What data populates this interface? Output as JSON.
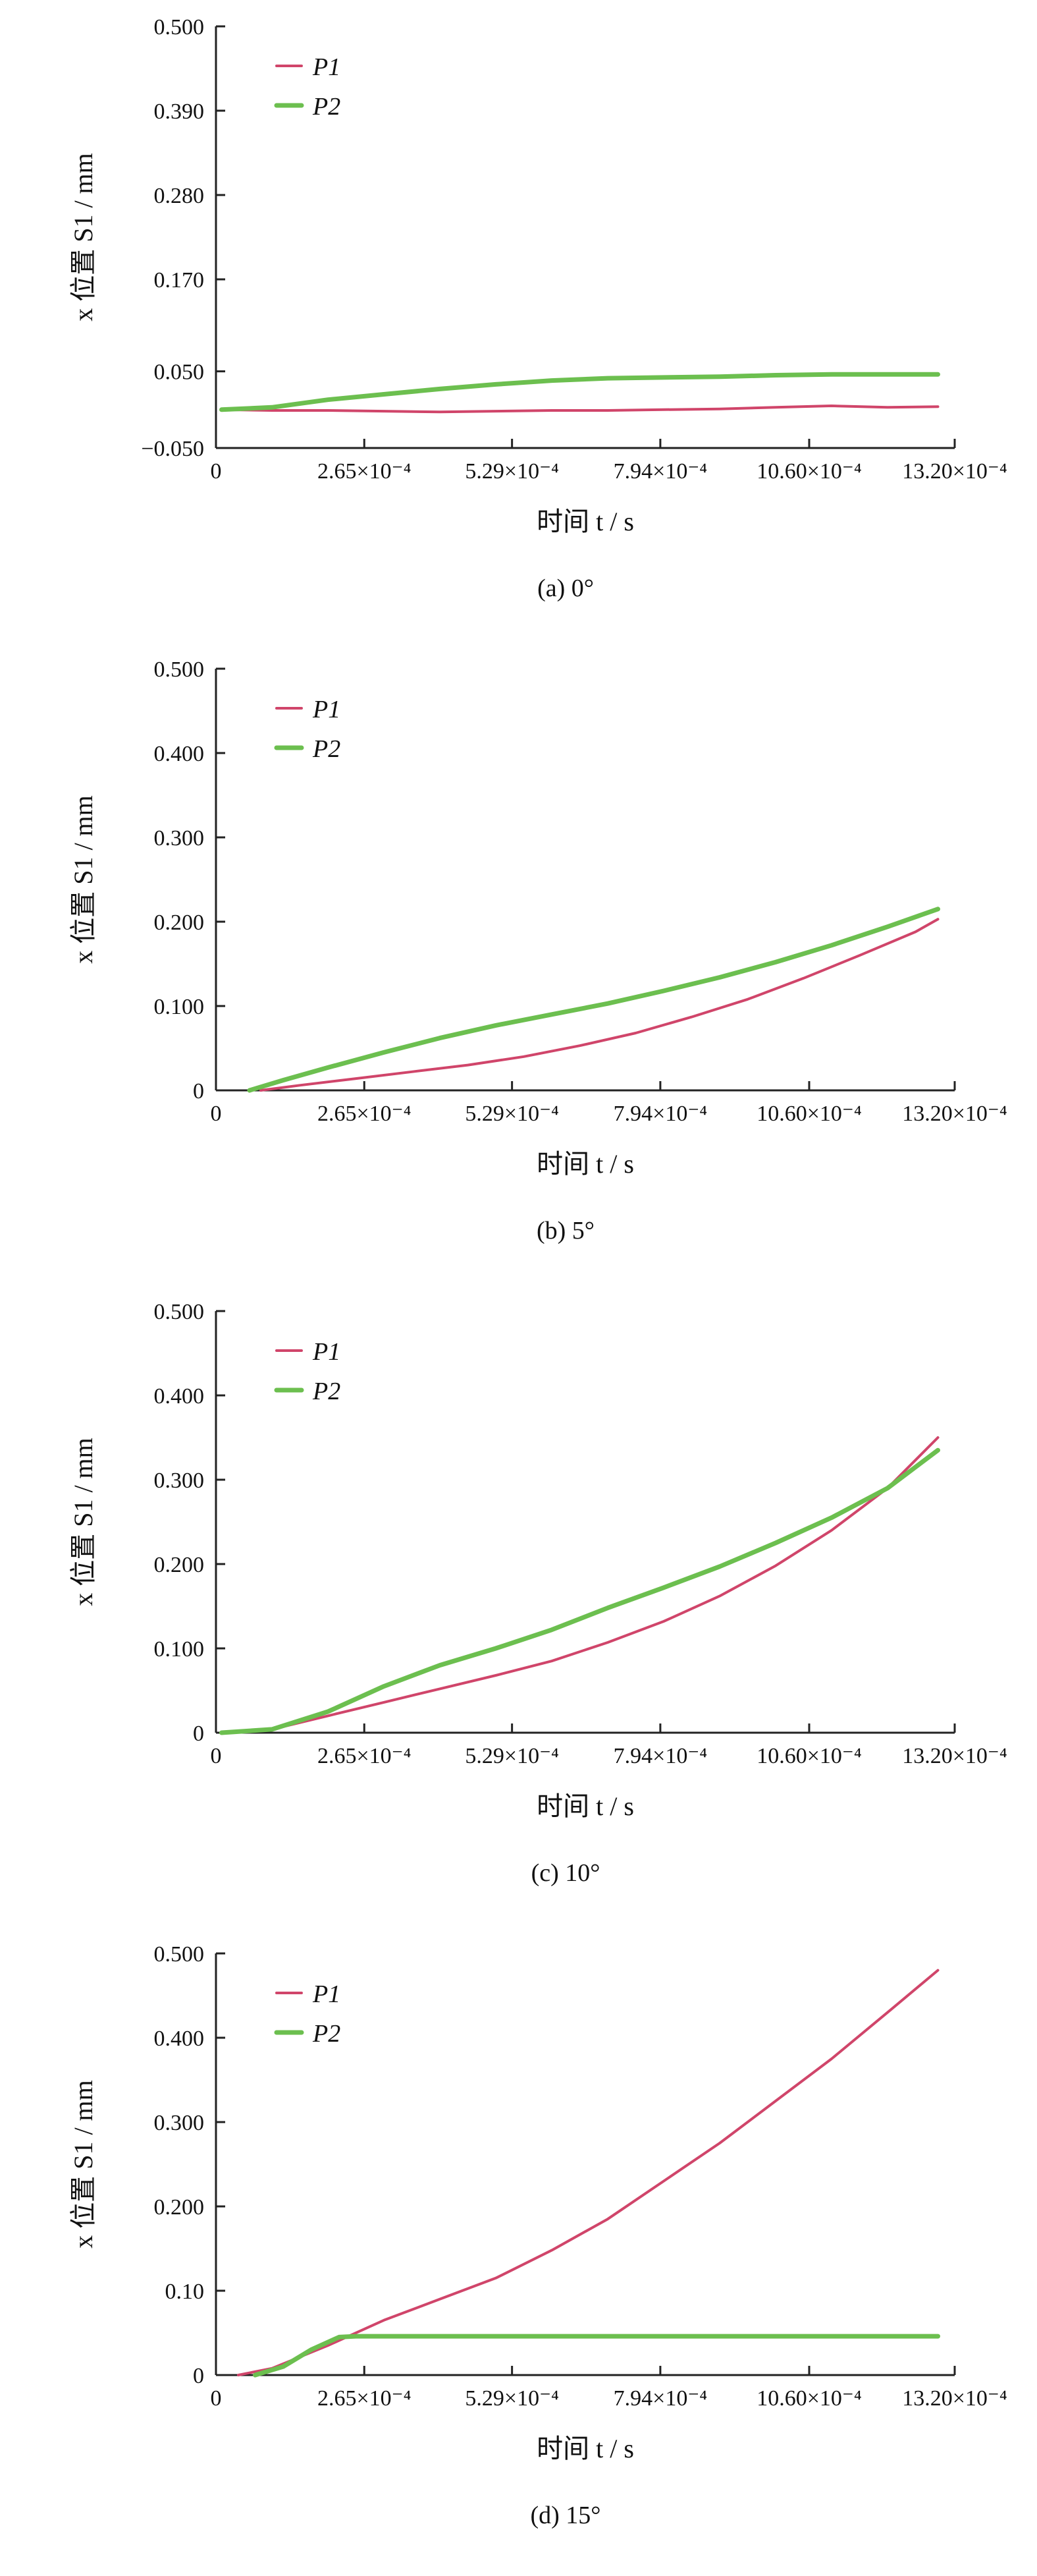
{
  "chart_data": [
    {
      "type": "line",
      "caption": "(a) 0°",
      "xlabel": "时间 t / s",
      "ylabel": "x 位置 S1 / mm",
      "xlim": [
        0,
        13.2
      ],
      "ylim": [
        -0.05,
        0.5
      ],
      "x_ticks": [
        0,
        2.65,
        5.29,
        7.94,
        10.6,
        13.2
      ],
      "x_tick_labels": [
        "0",
        "2.65×10⁻⁴",
        "5.29×10⁻⁴",
        "7.94×10⁻⁴",
        "10.60×10⁻⁴",
        "13.20×10⁻⁴"
      ],
      "y_ticks": [
        -0.05,
        0.05,
        0.17,
        0.28,
        0.39,
        0.5
      ],
      "y_tick_labels": [
        "−0.050",
        "0.050",
        "0.170",
        "0.280",
        "0.390",
        "0.500"
      ],
      "legend": "top-left",
      "series": [
        {
          "name": "P1",
          "color": "#d0456a",
          "x": [
            0.1,
            1.0,
            2.0,
            3.0,
            4.0,
            5.0,
            6.0,
            7.0,
            8.0,
            9.0,
            10.0,
            11.0,
            12.0,
            12.9
          ],
          "y": [
            0.0,
            -0.001,
            -0.001,
            -0.002,
            -0.003,
            -0.002,
            -0.001,
            -0.001,
            0.0,
            0.001,
            0.003,
            0.005,
            0.003,
            0.004
          ]
        },
        {
          "name": "P2",
          "color": "#6cbf4f",
          "x": [
            0.1,
            1.0,
            2.0,
            3.0,
            4.0,
            5.0,
            6.0,
            7.0,
            8.0,
            9.0,
            10.0,
            11.0,
            12.0,
            12.9
          ],
          "y": [
            0.0,
            0.003,
            0.013,
            0.02,
            0.027,
            0.033,
            0.038,
            0.041,
            0.042,
            0.043,
            0.045,
            0.046,
            0.046,
            0.046
          ]
        }
      ]
    },
    {
      "type": "line",
      "caption": "(b) 5°",
      "xlabel": "时间 t / s",
      "ylabel": "x 位置 S1 / mm",
      "xlim": [
        0,
        13.2
      ],
      "ylim": [
        0,
        0.5
      ],
      "x_ticks": [
        0,
        2.65,
        5.29,
        7.94,
        10.6,
        13.2
      ],
      "x_tick_labels": [
        "0",
        "2.65×10⁻⁴",
        "5.29×10⁻⁴",
        "7.94×10⁻⁴",
        "10.60×10⁻⁴",
        "13.20×10⁻⁴"
      ],
      "y_ticks": [
        0,
        0.1,
        0.2,
        0.3,
        0.4,
        0.5
      ],
      "y_tick_labels": [
        "0",
        "0.100",
        "0.200",
        "0.300",
        "0.400",
        "0.500"
      ],
      "legend": "top-left",
      "series": [
        {
          "name": "P1",
          "color": "#d0456a",
          "x": [
            0.8,
            1.5,
            2.5,
            3.5,
            4.5,
            5.5,
            6.5,
            7.5,
            8.5,
            9.5,
            10.5,
            11.5,
            12.5,
            12.9
          ],
          "y": [
            0.0,
            0.006,
            0.014,
            0.022,
            0.03,
            0.04,
            0.053,
            0.068,
            0.087,
            0.108,
            0.133,
            0.16,
            0.188,
            0.203
          ]
        },
        {
          "name": "P2",
          "color": "#6cbf4f",
          "x": [
            0.6,
            1.2,
            2.0,
            3.0,
            4.0,
            5.0,
            6.0,
            7.0,
            8.0,
            9.0,
            10.0,
            11.0,
            12.0,
            12.9
          ],
          "y": [
            0.0,
            0.012,
            0.027,
            0.045,
            0.062,
            0.077,
            0.09,
            0.103,
            0.118,
            0.134,
            0.152,
            0.172,
            0.194,
            0.215
          ]
        }
      ]
    },
    {
      "type": "line",
      "caption": "(c) 10°",
      "xlabel": "时间 t / s",
      "ylabel": "x 位置 S1 / mm",
      "xlim": [
        0,
        13.2
      ],
      "ylim": [
        0,
        0.5
      ],
      "x_ticks": [
        0,
        2.65,
        5.29,
        7.94,
        10.6,
        13.2
      ],
      "x_tick_labels": [
        "0",
        "2.65×10⁻⁴",
        "5.29×10⁻⁴",
        "7.94×10⁻⁴",
        "10.60×10⁻⁴",
        "13.20×10⁻⁴"
      ],
      "y_ticks": [
        0,
        0.1,
        0.2,
        0.3,
        0.4,
        0.5
      ],
      "y_tick_labels": [
        "0",
        "0.100",
        "0.200",
        "0.300",
        "0.400",
        "0.500"
      ],
      "legend": "top-left",
      "series": [
        {
          "name": "P1",
          "color": "#d0456a",
          "x": [
            0.1,
            1.0,
            2.0,
            3.0,
            4.0,
            5.0,
            6.0,
            7.0,
            8.0,
            9.0,
            10.0,
            11.0,
            12.0,
            12.9
          ],
          "y": [
            0.0,
            0.004,
            0.02,
            0.036,
            0.052,
            0.068,
            0.085,
            0.107,
            0.132,
            0.162,
            0.198,
            0.24,
            0.29,
            0.35
          ]
        },
        {
          "name": "P2",
          "color": "#6cbf4f",
          "x": [
            0.1,
            1.0,
            2.0,
            3.0,
            4.0,
            5.0,
            6.0,
            7.0,
            8.0,
            9.0,
            10.0,
            11.0,
            12.0,
            12.9
          ],
          "y": [
            0.0,
            0.004,
            0.025,
            0.055,
            0.08,
            0.1,
            0.122,
            0.148,
            0.172,
            0.197,
            0.225,
            0.255,
            0.29,
            0.335
          ]
        }
      ]
    },
    {
      "type": "line",
      "caption": "(d) 15°",
      "xlabel": "时间 t / s",
      "ylabel": "x 位置 S1 / mm",
      "xlim": [
        0,
        13.2
      ],
      "ylim": [
        0,
        0.5
      ],
      "x_ticks": [
        0,
        2.65,
        5.29,
        7.94,
        10.6,
        13.2
      ],
      "x_tick_labels": [
        "0",
        "2.65×10⁻⁴",
        "5.29×10⁻⁴",
        "7.94×10⁻⁴",
        "10.60×10⁻⁴",
        "13.20×10⁻⁴"
      ],
      "y_ticks": [
        0,
        0.1,
        0.2,
        0.3,
        0.4,
        0.5
      ],
      "y_tick_labels": [
        "0",
        "0.10",
        "0.200",
        "0.300",
        "0.400",
        "0.500"
      ],
      "legend": "top-left",
      "series": [
        {
          "name": "P1",
          "color": "#d0456a",
          "x": [
            0.4,
            1.0,
            2.0,
            3.0,
            4.0,
            5.0,
            6.0,
            7.0,
            8.0,
            9.0,
            10.0,
            11.0,
            12.0,
            12.9
          ],
          "y": [
            0.0,
            0.008,
            0.035,
            0.065,
            0.09,
            0.115,
            0.148,
            0.185,
            0.23,
            0.275,
            0.325,
            0.375,
            0.43,
            0.48
          ]
        },
        {
          "name": "P2",
          "color": "#6cbf4f",
          "x": [
            0.7,
            1.2,
            1.7,
            2.2,
            2.5,
            3.0,
            4.0,
            5.0,
            6.0,
            7.0,
            8.0,
            9.0,
            10.0,
            11.0,
            12.0,
            12.9
          ],
          "y": [
            0.0,
            0.01,
            0.03,
            0.045,
            0.046,
            0.046,
            0.046,
            0.046,
            0.046,
            0.046,
            0.046,
            0.046,
            0.046,
            0.046,
            0.046,
            0.046
          ]
        }
      ]
    }
  ]
}
